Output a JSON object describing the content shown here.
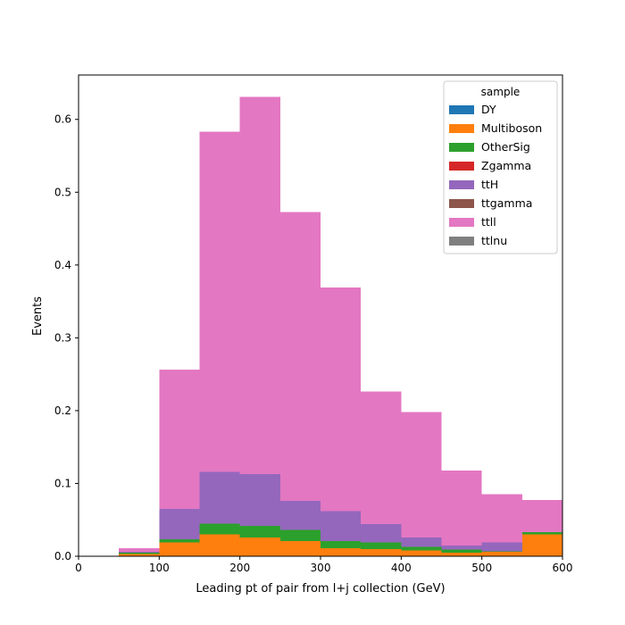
{
  "chart_data": {
    "type": "bar",
    "stacked": true,
    "xlabel": "Leading pt of pair from l+j collection (GeV)",
    "ylabel": "Events",
    "xlim": [
      0,
      600
    ],
    "ylim": [
      0,
      0.661
    ],
    "x_ticks": [
      0,
      100,
      200,
      300,
      400,
      500,
      600
    ],
    "y_ticks": [
      0.0,
      0.1,
      0.2,
      0.3,
      0.4,
      0.5,
      0.6
    ],
    "x_tick_labels": [
      "0",
      "100",
      "200",
      "300",
      "400",
      "500",
      "600"
    ],
    "y_tick_labels": [
      "0.0",
      "0.1",
      "0.2",
      "0.3",
      "0.4",
      "0.5",
      "0.6"
    ],
    "bin_edges": [
      50,
      100,
      150,
      200,
      250,
      300,
      350,
      400,
      450,
      500,
      550,
      600
    ],
    "grid": false,
    "legend": {
      "title": "sample",
      "placement": "top-right"
    },
    "series": [
      {
        "name": "DY",
        "color": "#1f77b4",
        "values": [
          0,
          0,
          0,
          0,
          0,
          0,
          0,
          0,
          0,
          0,
          0
        ]
      },
      {
        "name": "Multiboson",
        "color": "#ff7f0e",
        "values": [
          0.003,
          0.019,
          0.03,
          0.026,
          0.021,
          0.011,
          0.01,
          0.008,
          0.005,
          0.006,
          0.03
        ]
      },
      {
        "name": "OtherSig",
        "color": "#2ca02c",
        "values": [
          0.002,
          0.004,
          0.015,
          0.016,
          0.015,
          0.01,
          0.009,
          0.005,
          0.004,
          0.001,
          0.003
        ]
      },
      {
        "name": "Zgamma",
        "color": "#d62728",
        "values": [
          0,
          0,
          0,
          0,
          0,
          0,
          0,
          0,
          0,
          0,
          0
        ]
      },
      {
        "name": "ttH",
        "color": "#9467bd",
        "values": [
          0.001,
          0.042,
          0.071,
          0.071,
          0.04,
          0.041,
          0.025,
          0.013,
          0.006,
          0.012,
          0
        ]
      },
      {
        "name": "ttgamma",
        "color": "#8c564b",
        "values": [
          0,
          0,
          0,
          0,
          0,
          0,
          0,
          0,
          0,
          0,
          0
        ]
      },
      {
        "name": "ttll",
        "color": "#e377c2",
        "values": [
          0.005,
          0.191,
          0.467,
          0.518,
          0.397,
          0.307,
          0.182,
          0.172,
          0.103,
          0.066,
          0.044
        ]
      },
      {
        "name": "ttlnu",
        "color": "#7f7f7f",
        "values": [
          0,
          0,
          0,
          0,
          0,
          0,
          0,
          0,
          0,
          0,
          0
        ]
      }
    ]
  }
}
